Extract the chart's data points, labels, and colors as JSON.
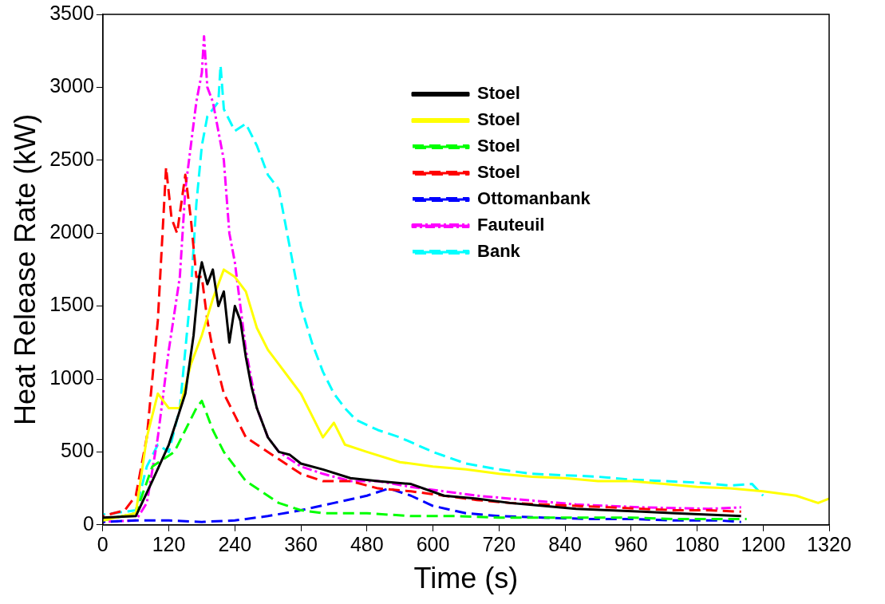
{
  "chart_data": {
    "type": "line",
    "xlabel": "Time (s)",
    "ylabel": "Heat Release Rate (kW)",
    "xlim": [
      0,
      1320
    ],
    "xticks": [
      0,
      120,
      240,
      360,
      480,
      600,
      720,
      840,
      960,
      1080,
      1200,
      1320
    ],
    "ylim": [
      0,
      3500
    ],
    "yticks": [
      0,
      500,
      1000,
      1500,
      2000,
      2500,
      3000,
      3500
    ],
    "grid": false,
    "legend": "top right",
    "marker": "none",
    "series": [
      {
        "name": "Stoel",
        "color": "#000000",
        "line_style": "solid",
        "x": [
          0,
          60,
          90,
          120,
          150,
          165,
          175,
          180,
          190,
          200,
          210,
          220,
          230,
          240,
          250,
          260,
          270,
          280,
          290,
          300,
          320,
          340,
          360,
          400,
          450,
          500,
          560,
          620,
          680,
          740,
          800,
          860,
          920,
          980,
          1040,
          1100,
          1160
        ],
        "values": [
          50,
          60,
          300,
          550,
          900,
          1300,
          1700,
          1800,
          1650,
          1750,
          1500,
          1600,
          1250,
          1500,
          1400,
          1150,
          950,
          800,
          700,
          600,
          500,
          480,
          420,
          380,
          320,
          300,
          280,
          200,
          180,
          150,
          130,
          110,
          100,
          90,
          80,
          70,
          60
        ]
      },
      {
        "name": "Stoel",
        "color": "#ffff00",
        "line_style": "solid",
        "x": [
          0,
          60,
          80,
          100,
          120,
          140,
          160,
          180,
          200,
          220,
          240,
          260,
          280,
          300,
          320,
          340,
          360,
          380,
          400,
          420,
          440,
          480,
          540,
          600,
          660,
          720,
          780,
          840,
          900,
          960,
          1020,
          1080,
          1140,
          1200,
          1260,
          1300,
          1320
        ],
        "values": [
          30,
          80,
          600,
          900,
          800,
          800,
          1100,
          1300,
          1550,
          1750,
          1700,
          1600,
          1350,
          1200,
          1100,
          1000,
          900,
          750,
          600,
          700,
          550,
          500,
          430,
          400,
          380,
          350,
          330,
          320,
          300,
          300,
          280,
          260,
          250,
          230,
          200,
          150,
          180
        ]
      },
      {
        "name": "Stoel",
        "color": "#00ff00",
        "line_style": "dashed",
        "x": [
          0,
          60,
          90,
          110,
          130,
          150,
          170,
          180,
          190,
          200,
          220,
          240,
          260,
          280,
          320,
          360,
          400,
          480,
          560,
          640,
          720,
          800,
          880,
          960,
          1040,
          1120,
          1170
        ],
        "values": [
          30,
          80,
          400,
          450,
          500,
          650,
          800,
          850,
          750,
          650,
          500,
          400,
          300,
          250,
          150,
          100,
          80,
          80,
          60,
          60,
          50,
          50,
          50,
          50,
          40,
          40,
          40
        ]
      },
      {
        "name": "Stoel",
        "color": "#ff0000",
        "line_style": "dashed",
        "x": [
          0,
          40,
          60,
          80,
          100,
          110,
          115,
          125,
          135,
          150,
          160,
          170,
          180,
          190,
          200,
          220,
          240,
          260,
          280,
          300,
          320,
          360,
          400,
          450,
          500,
          560,
          620,
          680,
          740,
          800,
          860,
          920,
          980,
          1040,
          1100,
          1160
        ],
        "values": [
          60,
          100,
          200,
          600,
          1400,
          2100,
          2450,
          2100,
          2000,
          2400,
          2100,
          1700,
          1700,
          1400,
          1200,
          900,
          750,
          600,
          550,
          500,
          450,
          350,
          300,
          300,
          250,
          230,
          200,
          170,
          150,
          140,
          130,
          120,
          110,
          100,
          100,
          90
        ]
      },
      {
        "name": "Ottomanbank",
        "color": "#0000ff",
        "line_style": "dashed",
        "x": [
          0,
          60,
          120,
          180,
          240,
          300,
          360,
          420,
          480,
          520,
          560,
          600,
          660,
          720,
          800,
          880,
          960,
          1040,
          1120,
          1160
        ],
        "values": [
          20,
          30,
          30,
          20,
          30,
          60,
          100,
          150,
          200,
          250,
          200,
          130,
          80,
          60,
          50,
          40,
          40,
          30,
          30,
          20
        ]
      },
      {
        "name": "Fauteuil",
        "color": "#ff00ff",
        "line_style": "dashdot",
        "x": [
          0,
          60,
          80,
          100,
          120,
          140,
          150,
          160,
          170,
          180,
          184,
          190,
          200,
          210,
          220,
          230,
          240,
          250,
          260,
          270,
          280,
          300,
          320,
          360,
          400,
          450,
          500,
          560,
          620,
          680,
          740,
          800,
          860,
          920,
          980,
          1040,
          1100,
          1160
        ],
        "values": [
          20,
          30,
          150,
          600,
          1200,
          1700,
          2300,
          2600,
          2900,
          3100,
          3350,
          3000,
          2900,
          2700,
          2500,
          2000,
          1800,
          1500,
          1200,
          1000,
          800,
          600,
          500,
          400,
          350,
          300,
          300,
          260,
          230,
          200,
          180,
          160,
          140,
          130,
          120,
          115,
          110,
          120
        ]
      },
      {
        "name": "Bank",
        "color": "#00ffff",
        "line_style": "dashed",
        "x": [
          0,
          60,
          80,
          100,
          120,
          140,
          160,
          170,
          180,
          190,
          200,
          210,
          214,
          220,
          240,
          260,
          280,
          300,
          320,
          340,
          360,
          380,
          400,
          420,
          440,
          460,
          500,
          540,
          600,
          660,
          720,
          780,
          840,
          900,
          960,
          1020,
          1080,
          1140,
          1180,
          1200
        ],
        "values": [
          70,
          100,
          400,
          550,
          500,
          800,
          1600,
          2200,
          2600,
          2800,
          2850,
          2900,
          3150,
          2850,
          2700,
          2750,
          2600,
          2400,
          2300,
          1900,
          1500,
          1250,
          1050,
          900,
          800,
          720,
          650,
          600,
          500,
          420,
          380,
          350,
          340,
          330,
          310,
          300,
          290,
          270,
          280,
          200
        ]
      }
    ]
  }
}
